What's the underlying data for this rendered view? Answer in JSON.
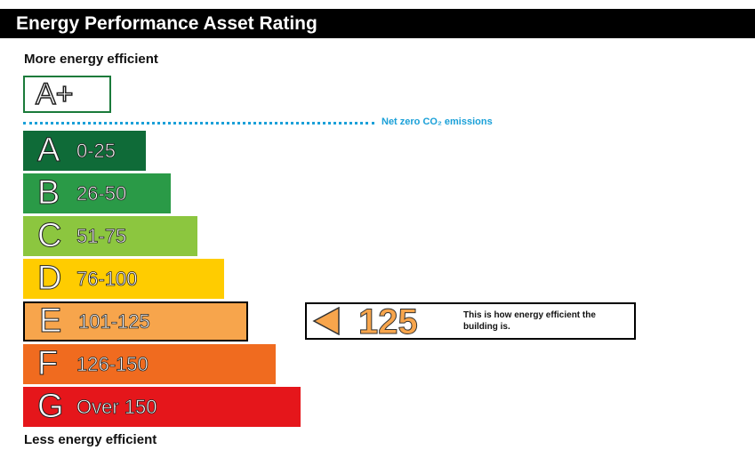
{
  "header": {
    "title": "Energy Performance Asset Rating"
  },
  "labels": {
    "more": "More energy efficient",
    "less": "Less energy efficient",
    "net_zero": "Net zero CO₂ emissions"
  },
  "chart_data": {
    "type": "bar",
    "title": "Energy Performance Asset Rating",
    "aplus": {
      "letter": "A+"
    },
    "categories": [
      "A",
      "B",
      "C",
      "D",
      "E",
      "F",
      "G"
    ],
    "ranges": [
      "0-25",
      "26-50",
      "51-75",
      "76-100",
      "101-125",
      "126-150",
      "Over 150"
    ],
    "colors": [
      "#0f6b38",
      "#2a9a47",
      "#8cc63f",
      "#ffcc00",
      "#f7a54c",
      "#f06b1f",
      "#e5161b"
    ],
    "current": {
      "band": "E",
      "value": "125",
      "caption": "This is how energy efficient the building is."
    }
  }
}
